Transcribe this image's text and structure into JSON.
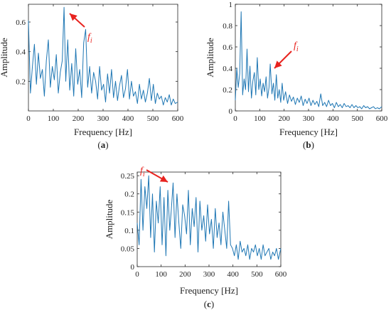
{
  "chart_data": [
    {
      "type": "line",
      "panel": "(a)",
      "caption_letter": "a",
      "xlabel": "Frequency [Hz]",
      "ylabel": "Amplitude",
      "xlim": [
        0,
        600
      ],
      "ylim": [
        0,
        0.72
      ],
      "xticks": [
        0,
        100,
        200,
        300,
        400,
        500,
        600
      ],
      "yticks": [
        0.2,
        0.4,
        0.6
      ],
      "ytick_labels": [
        "0.2",
        "0.4",
        "0.6"
      ],
      "annotation": {
        "text": "f",
        "sub": "i",
        "x": 143,
        "y": 0.7
      },
      "line_color": "#1f77b4",
      "grid": false,
      "series": [
        {
          "x": [
            0,
            8,
            16,
            24,
            32,
            40,
            48,
            56,
            64,
            72,
            80,
            88,
            96,
            104,
            112,
            120,
            128,
            136,
            143,
            150,
            158,
            166,
            174,
            182,
            190,
            198,
            206,
            214,
            222,
            230,
            238,
            246,
            254,
            262,
            270,
            278,
            286,
            294,
            302,
            310,
            318,
            326,
            334,
            342,
            350,
            358,
            366,
            374,
            382,
            390,
            398,
            406,
            414,
            422,
            430,
            438,
            446,
            454,
            462,
            470,
            478,
            486,
            494,
            502,
            510,
            518,
            526,
            534,
            542,
            550,
            558,
            566,
            574,
            582,
            590,
            600
          ],
          "y": [
            0.61,
            0.12,
            0.3,
            0.45,
            0.18,
            0.39,
            0.22,
            0.28,
            0.1,
            0.34,
            0.48,
            0.16,
            0.3,
            0.21,
            0.38,
            0.12,
            0.26,
            0.34,
            0.7,
            0.2,
            0.48,
            0.14,
            0.32,
            0.1,
            0.42,
            0.18,
            0.28,
            0.09,
            0.46,
            0.55,
            0.16,
            0.3,
            0.12,
            0.26,
            0.2,
            0.08,
            0.3,
            0.14,
            0.18,
            0.06,
            0.25,
            0.12,
            0.28,
            0.09,
            0.2,
            0.07,
            0.17,
            0.24,
            0.09,
            0.15,
            0.28,
            0.08,
            0.2,
            0.1,
            0.13,
            0.05,
            0.18,
            0.08,
            0.14,
            0.06,
            0.12,
            0.22,
            0.07,
            0.18,
            0.05,
            0.12,
            0.08,
            0.1,
            0.04,
            0.09,
            0.06,
            0.11,
            0.04,
            0.08,
            0.05,
            0.06
          ]
        }
      ]
    },
    {
      "type": "line",
      "panel": "(b)",
      "caption_letter": "b",
      "xlabel": "Frequency [Hz]",
      "ylabel": "Amplitude",
      "xlim": [
        0,
        600
      ],
      "ylim": [
        0,
        1.0
      ],
      "xticks": [
        0,
        100,
        200,
        300,
        400,
        500,
        600
      ],
      "yticks": [
        0,
        0.2,
        0.4,
        0.6,
        0.8,
        1
      ],
      "ytick_labels": [
        "0",
        "0.2",
        "0.4",
        "0.6",
        "0.8",
        "1"
      ],
      "annotation": {
        "text": "f",
        "sub": "i",
        "x": 143,
        "y": 0.44
      },
      "line_color": "#1f77b4",
      "grid": false,
      "series": [
        {
          "x": [
            0,
            6,
            12,
            18,
            24,
            30,
            36,
            42,
            48,
            54,
            60,
            66,
            72,
            78,
            84,
            90,
            96,
            102,
            108,
            114,
            120,
            126,
            132,
            138,
            143,
            150,
            156,
            162,
            168,
            174,
            180,
            186,
            192,
            198,
            206,
            214,
            222,
            230,
            238,
            246,
            254,
            262,
            270,
            278,
            286,
            294,
            302,
            310,
            318,
            326,
            334,
            342,
            350,
            358,
            366,
            374,
            382,
            390,
            398,
            406,
            414,
            422,
            430,
            438,
            446,
            454,
            462,
            470,
            478,
            486,
            494,
            502,
            510,
            518,
            526,
            534,
            542,
            550,
            558,
            566,
            574,
            582,
            590,
            600
          ],
          "y": [
            0.1,
            0.4,
            0.22,
            0.35,
            0.93,
            0.15,
            0.3,
            0.2,
            0.58,
            0.18,
            0.42,
            0.12,
            0.28,
            0.36,
            0.15,
            0.5,
            0.2,
            0.3,
            0.14,
            0.26,
            0.18,
            0.32,
            0.12,
            0.22,
            0.44,
            0.16,
            0.26,
            0.1,
            0.34,
            0.12,
            0.2,
            0.08,
            0.26,
            0.1,
            0.18,
            0.07,
            0.15,
            0.09,
            0.13,
            0.06,
            0.12,
            0.08,
            0.14,
            0.05,
            0.11,
            0.07,
            0.12,
            0.05,
            0.1,
            0.06,
            0.09,
            0.04,
            0.16,
            0.05,
            0.08,
            0.04,
            0.1,
            0.05,
            0.07,
            0.03,
            0.08,
            0.04,
            0.06,
            0.03,
            0.07,
            0.04,
            0.05,
            0.03,
            0.06,
            0.03,
            0.05,
            0.03,
            0.04,
            0.02,
            0.05,
            0.03,
            0.04,
            0.02,
            0.03,
            0.04,
            0.02,
            0.03,
            0.02,
            0.04
          ]
        }
      ]
    },
    {
      "type": "line",
      "panel": "(c)",
      "caption_letter": "c",
      "xlabel": "Frequency [Hz]",
      "ylabel": "Amplitude",
      "xlim": [
        0,
        600
      ],
      "ylim": [
        0,
        0.26
      ],
      "xticks": [
        0,
        100,
        200,
        300,
        400,
        500,
        600
      ],
      "yticks": [
        0,
        0.05,
        0.1,
        0.15,
        0.2,
        0.25
      ],
      "ytick_labels": [
        "0",
        "0.05",
        "0.1",
        "0.15",
        "0.2",
        "0.25"
      ],
      "annotation": {
        "text": "f",
        "sub": "i",
        "x": 143,
        "y": 0.235
      },
      "line_color": "#1f77b4",
      "grid": false,
      "series": [
        {
          "x": [
            0,
            8,
            16,
            24,
            32,
            40,
            48,
            56,
            64,
            72,
            80,
            88,
            96,
            104,
            112,
            120,
            128,
            136,
            143,
            150,
            158,
            166,
            174,
            182,
            190,
            198,
            206,
            214,
            222,
            230,
            238,
            246,
            254,
            262,
            270,
            278,
            286,
            294,
            302,
            310,
            318,
            326,
            334,
            342,
            350,
            358,
            366,
            374,
            382,
            390,
            398,
            406,
            414,
            422,
            430,
            438,
            446,
            454,
            462,
            470,
            478,
            486,
            494,
            502,
            510,
            518,
            526,
            534,
            542,
            550,
            558,
            566,
            574,
            582,
            590,
            600
          ],
          "y": [
            0.12,
            0.06,
            0.24,
            0.1,
            0.22,
            0.16,
            0.25,
            0.08,
            0.2,
            0.04,
            0.18,
            0.12,
            0.22,
            0.06,
            0.19,
            0.03,
            0.21,
            0.1,
            0.16,
            0.23,
            0.08,
            0.2,
            0.12,
            0.05,
            0.17,
            0.14,
            0.09,
            0.21,
            0.06,
            0.16,
            0.11,
            0.19,
            0.04,
            0.18,
            0.1,
            0.14,
            0.07,
            0.17,
            0.09,
            0.13,
            0.05,
            0.16,
            0.08,
            0.12,
            0.06,
            0.15,
            0.1,
            0.05,
            0.18,
            0.06,
            0.05,
            0.03,
            0.06,
            0.02,
            0.07,
            0.04,
            0.05,
            0.03,
            0.06,
            0.02,
            0.05,
            0.04,
            0.06,
            0.03,
            0.05,
            0.02,
            0.06,
            0.03,
            0.04,
            0.05,
            0.02,
            0.04,
            0.03,
            0.05,
            0.02,
            0.05
          ]
        }
      ]
    }
  ]
}
